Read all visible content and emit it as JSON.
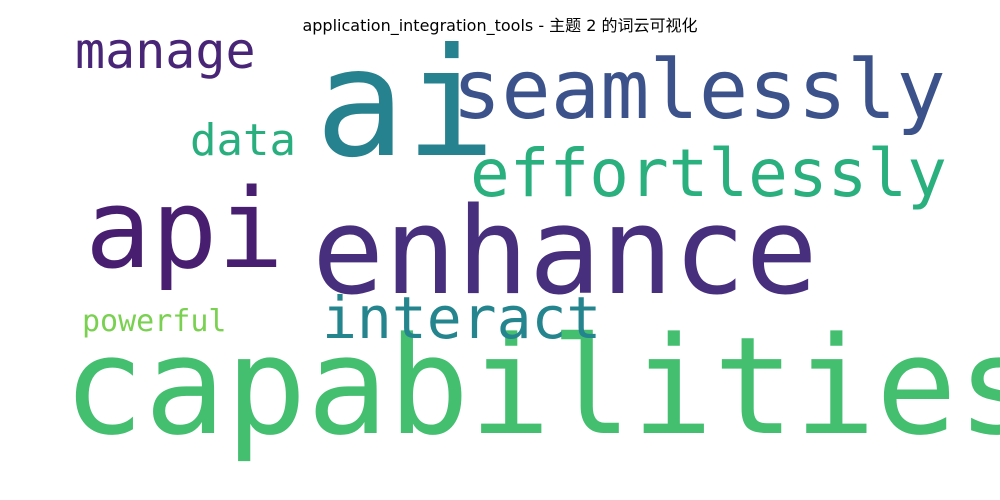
{
  "chart_data": {
    "type": "wordcloud",
    "title": "application_integration_tools - 主题 2 的词云可视化",
    "words": [
      {
        "text": "ai",
        "weight": 100,
        "color": "#26828e"
      },
      {
        "text": "seamlessly",
        "weight": 68,
        "color": "#3b528b"
      },
      {
        "text": "enhance",
        "weight": 90,
        "color": "#472f7d"
      },
      {
        "text": "api",
        "weight": 85,
        "color": "#481f70"
      },
      {
        "text": "capabilities",
        "weight": 95,
        "color": "#44bf70"
      },
      {
        "text": "effortlessly",
        "weight": 52,
        "color": "#2ab07f"
      },
      {
        "text": "interact",
        "weight": 48,
        "color": "#25858e"
      },
      {
        "text": "manage",
        "weight": 40,
        "color": "#482576"
      },
      {
        "text": "data",
        "weight": 36,
        "color": "#29af7f"
      },
      {
        "text": "powerful",
        "weight": 30,
        "color": "#7ad151"
      }
    ]
  }
}
